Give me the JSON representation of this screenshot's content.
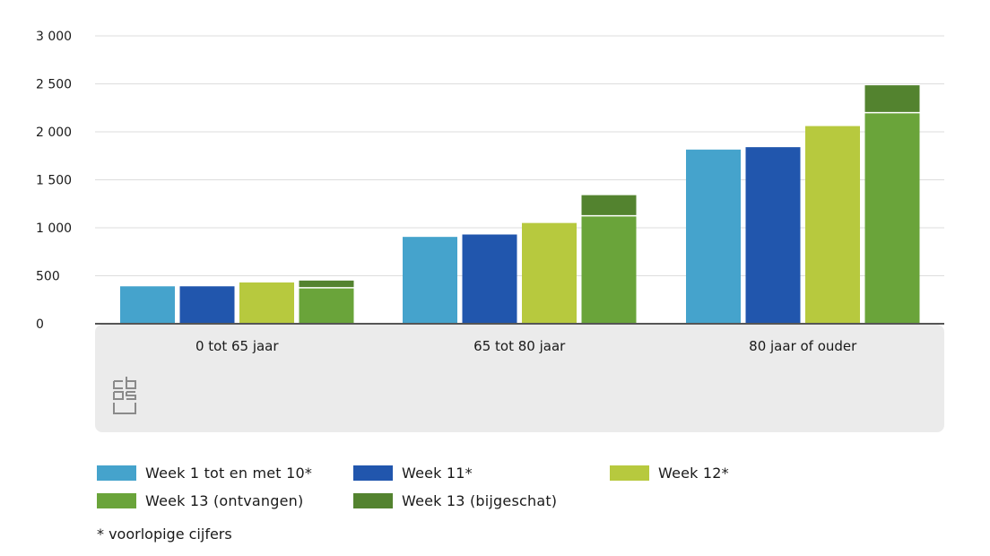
{
  "chart_data": {
    "type": "bar",
    "stacked_last_series": true,
    "categories": [
      "0 tot 65 jaar",
      "65 tot 80 jaar",
      "80 jaar of ouder"
    ],
    "series": [
      {
        "name": "Week 1 tot en met 10*",
        "color": "#45a3cc",
        "values": [
          390,
          905,
          1815
        ]
      },
      {
        "name": "Week 11*",
        "color": "#2156ad",
        "values": [
          390,
          930,
          1840
        ]
      },
      {
        "name": "Week 12*",
        "color": "#b7c93e",
        "values": [
          430,
          1050,
          2060
        ]
      },
      {
        "name": "Week 13 (ontvangen)",
        "color": "#6aa43a",
        "values": [
          375,
          1125,
          2200
        ],
        "stack": "week13"
      },
      {
        "name": "Week 13 (bijgeschat)",
        "color": "#53832f",
        "values": [
          75,
          215,
          285
        ],
        "stack": "week13"
      }
    ],
    "y_ticks": [
      "3 000",
      "2 500",
      "2 000",
      "1 500",
      "1 000",
      "500",
      "0"
    ],
    "y_tick_values": [
      3000,
      2500,
      2000,
      1500,
      1000,
      500,
      0
    ],
    "ylim": [
      0,
      3000
    ],
    "grid": true,
    "legend_placement": "bottom",
    "footnote": "* voorlopige cijfers"
  },
  "logo": {
    "text": "cbs",
    "icon": "cbs-logo-icon"
  }
}
